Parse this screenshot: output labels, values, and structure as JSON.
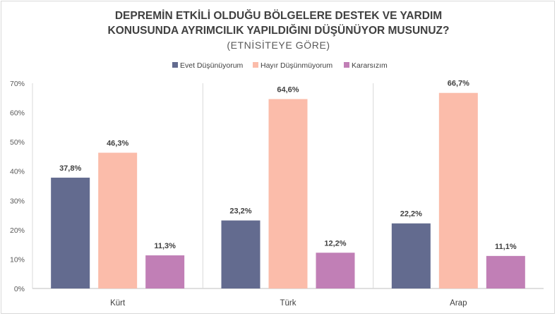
{
  "chart_data": {
    "type": "bar",
    "title": "DEPREMİN ETKİLİ OLDUĞU BÖLGELERE DESTEK VE YARDIM",
    "title_line2": "KONUSUNDA AYRIMCILIK YAPILDIĞINI DÜŞÜNÜYOR MUSUNUZ?",
    "subtitle": "(ETNİSİTEYE GÖRE)",
    "categories": [
      "Kürt",
      "Türk",
      "Arap"
    ],
    "series": [
      {
        "name": "Evet Düşünüyorum",
        "color": "#636b8f",
        "values": [
          37.8,
          23.2,
          22.2
        ],
        "labels": [
          "37,8%",
          "23,2%",
          "22,2%"
        ]
      },
      {
        "name": "Hayır Düşünmüyorum",
        "color": "#fbbcaa",
        "values": [
          46.3,
          64.6,
          66.7
        ],
        "labels": [
          "46,3%",
          "64,6%",
          "66,7%"
        ]
      },
      {
        "name": "Kararsızım",
        "color": "#c17fb6",
        "values": [
          11.3,
          12.2,
          11.1
        ],
        "labels": [
          "11,3%",
          "12,2%",
          "11,1%"
        ]
      }
    ],
    "yticks": [
      "0%",
      "10%",
      "20%",
      "30%",
      "40%",
      "50%",
      "60%",
      "70%"
    ],
    "ylim": [
      0,
      70
    ],
    "legend_position": "top",
    "grid": "vertical category separators"
  }
}
